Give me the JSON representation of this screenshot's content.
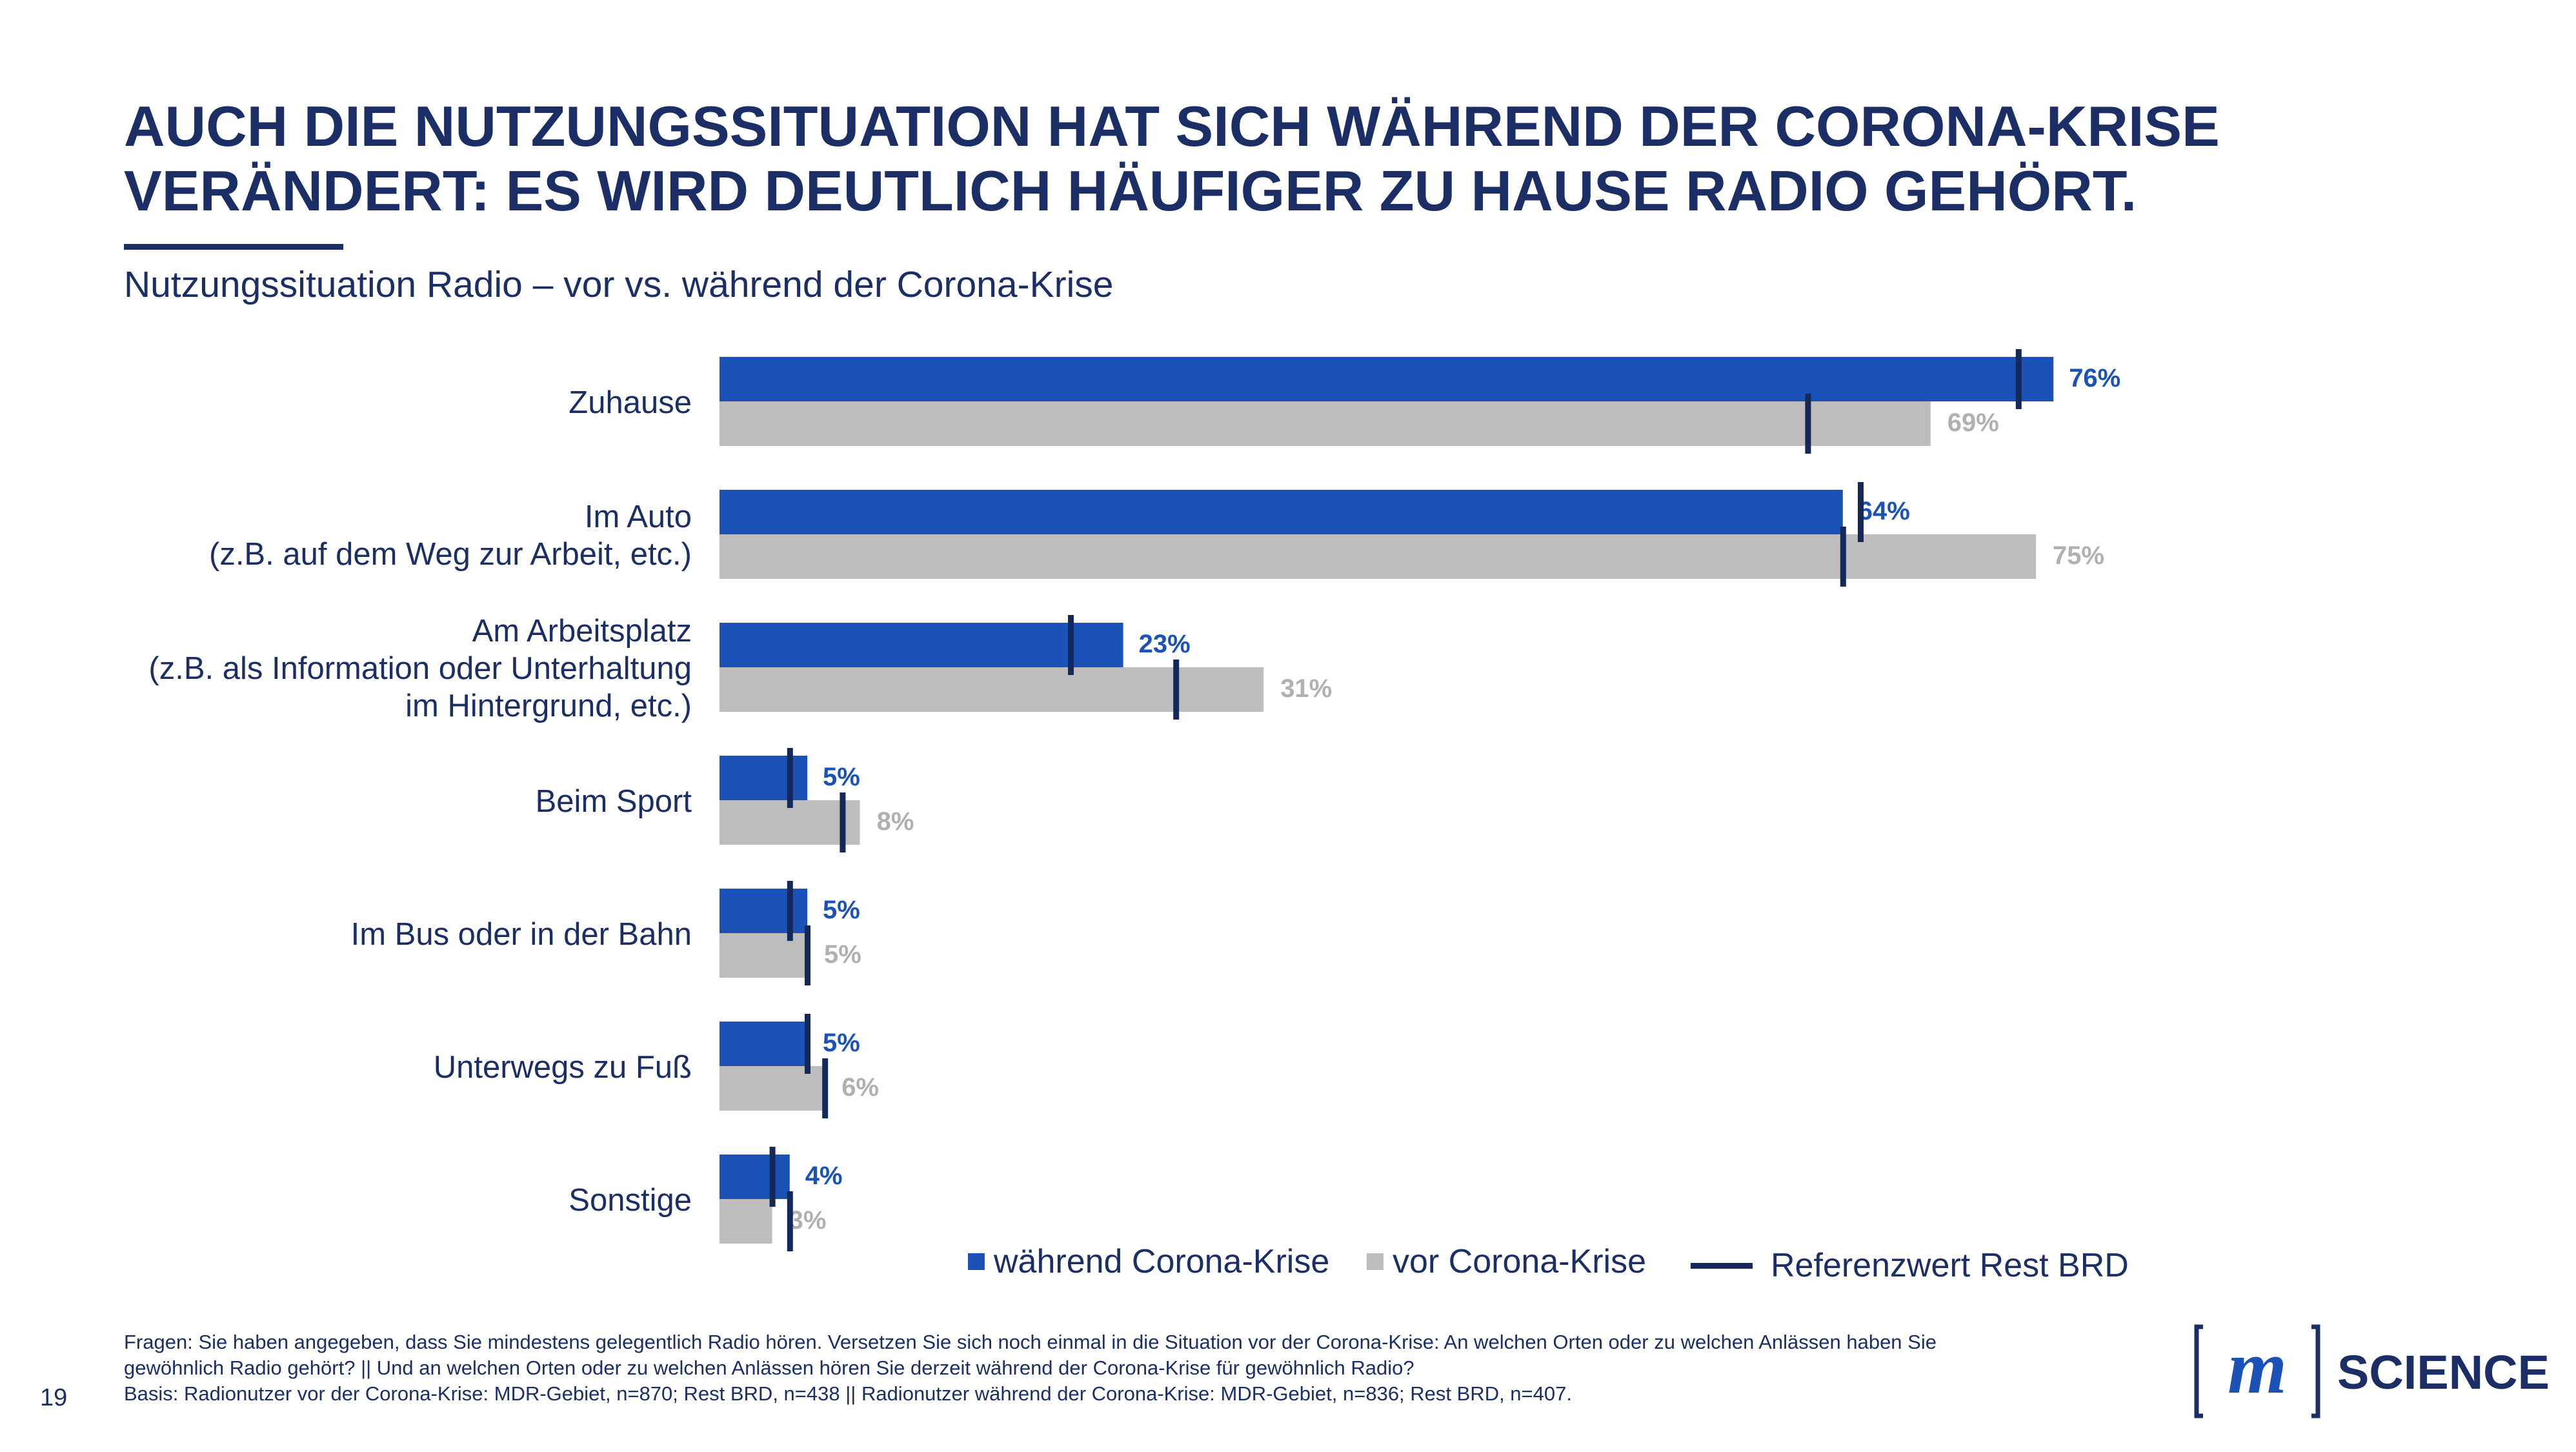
{
  "page": {
    "title_lines": [
      "AUCH DIE NUTZUNGSSITUATION HAT SICH WÄHREND DER CORONA-KRISE",
      "VERÄNDERT: ES WIRD DEUTLICH HÄUFIGER ZU HAUSE RADIO GEHÖRT."
    ],
    "subtitle": "Nutzungssituation Radio – vor vs. während der Corona-Krise",
    "page_number": "19",
    "footnote_lines": [
      "Fragen: Sie haben angegeben, dass Sie mindestens gelegentlich Radio hören. Versetzen Sie sich noch einmal in die Situation vor der Corona-Krise: An welchen Orten oder zu welchen Anlässen haben Sie",
      "gewöhnlich Radio gehört? || Und an welchen Orten oder zu welchen Anlässen hören Sie derzeit während der Corona-Krise für gewöhnlich Radio?",
      "Basis: Radionutzer vor der Corona-Krise: MDR-Gebiet, n=870; Rest BRD, n=438 || Radionutzer während der Corona-Krise: MDR-Gebiet, n=836; Rest BRD, n=407."
    ],
    "logo_text": "SCIENCE",
    "logo_letter": "m"
  },
  "legend": {
    "during_label": "während Corona-Krise",
    "before_label": "vor Corona-Krise",
    "reference_label": "Referenzwert Rest BRD"
  },
  "colors": {
    "during": "#1a52b8",
    "before": "#bdbdbd",
    "reference": "#14295a",
    "text": "#1b2e66",
    "during_label": "#1a52b8",
    "before_label": "#b0b0b0"
  },
  "chart_data": {
    "type": "bar",
    "orientation": "horizontal",
    "categories": [
      [
        "Zuhause"
      ],
      [
        "Im Auto",
        "(z.B. auf dem Weg zur Arbeit, etc.)"
      ],
      [
        "Am Arbeitsplatz",
        "(z.B. als Information oder Unterhaltung",
        "im Hintergrund, etc.)"
      ],
      [
        "Beim Sport"
      ],
      [
        "Im Bus oder in der Bahn"
      ],
      [
        "Unterwegs zu Fuß"
      ],
      [
        "Sonstige"
      ]
    ],
    "series": [
      {
        "name": "während Corona-Krise",
        "values": [
          76,
          64,
          23,
          5,
          5,
          5,
          4
        ],
        "value_labels": [
          "76%",
          "64%",
          "23%",
          "5%",
          "5%",
          "5%",
          "4%"
        ]
      },
      {
        "name": "vor Corona-Krise",
        "values": [
          69,
          75,
          31,
          8,
          5,
          6,
          3
        ],
        "value_labels": [
          "69%",
          "75%",
          "31%",
          "8%",
          "5%",
          "6%",
          "3%"
        ]
      }
    ],
    "reference_series": [
      {
        "name": "Referenzwert Rest BRD (während)",
        "values": [
          74,
          65,
          20,
          4,
          4,
          5,
          3
        ]
      },
      {
        "name": "Referenzwert Rest BRD (vor)",
        "values": [
          62,
          64,
          26,
          7,
          5,
          6,
          4
        ]
      }
    ],
    "xlim": [
      0,
      100
    ],
    "grid": false,
    "legend_position": "bottom-right"
  }
}
